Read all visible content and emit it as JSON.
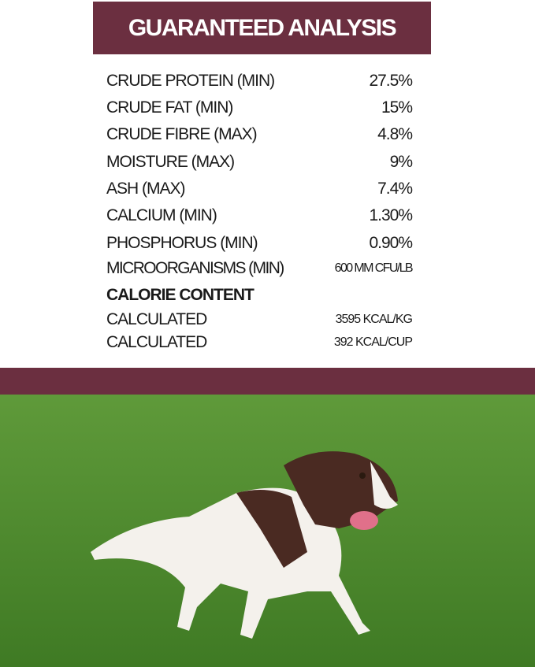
{
  "title": "GUARANTEED ANALYSIS",
  "rows": [
    {
      "label": "CRUDE PROTEIN (MIN)",
      "value": "27.5%"
    },
    {
      "label": "CRUDE FAT (MIN)",
      "value": "15%"
    },
    {
      "label": "CRUDE FIBRE (MAX)",
      "value": "4.8%"
    },
    {
      "label": "MOISTURE (MAX)",
      "value": "9%"
    },
    {
      "label": "ASH (MAX)",
      "value": "7.4%"
    },
    {
      "label": "CALCIUM (MIN)",
      "value": "1.30%"
    },
    {
      "label": "PHOSPHORUS (MIN)",
      "value": "0.90%"
    },
    {
      "label": "MICROORGANISMS (MIN)",
      "value": "600 MM CFU/LB"
    }
  ],
  "calorie": {
    "heading": "CALORIE CONTENT",
    "rows": [
      {
        "label": "CALCULATED",
        "value": "3595 KCAL/KG"
      },
      {
        "label": "CALCULATED",
        "value": "392 KCAL/CUP"
      }
    ]
  },
  "colors": {
    "brand": "#6b2f40",
    "grass": "#4f8a2e"
  }
}
